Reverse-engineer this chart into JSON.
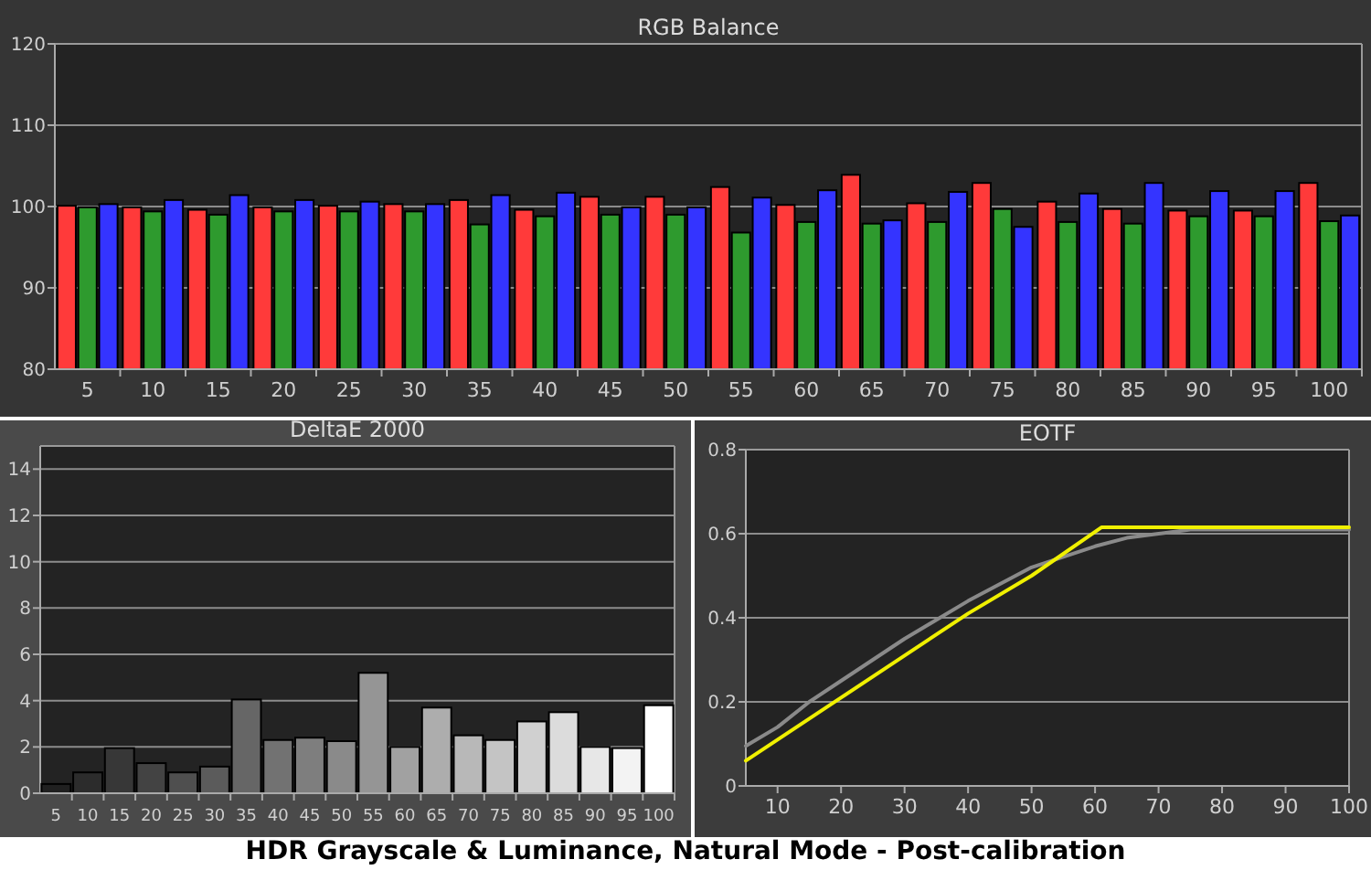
{
  "chart_data": [
    {
      "type": "bar",
      "title": "RGB Balance",
      "categories": [
        "5",
        "10",
        "15",
        "20",
        "25",
        "30",
        "35",
        "40",
        "45",
        "50",
        "55",
        "60",
        "65",
        "70",
        "75",
        "80",
        "85",
        "90",
        "95",
        "100"
      ],
      "series": [
        {
          "color": "#ff3a3a",
          "values": [
            100.1,
            99.9,
            99.6,
            99.9,
            100.1,
            100.3,
            100.8,
            99.6,
            101.2,
            101.2,
            102.4,
            100.2,
            103.9,
            100.4,
            102.9,
            100.6,
            99.7,
            99.5,
            99.5,
            102.9
          ]
        },
        {
          "color": "#2e9a2e",
          "values": [
            99.9,
            99.4,
            99.0,
            99.4,
            99.4,
            99.4,
            97.8,
            98.8,
            99.0,
            99.0,
            96.8,
            98.1,
            97.9,
            98.1,
            99.7,
            98.1,
            97.9,
            98.8,
            98.8,
            98.2
          ]
        },
        {
          "color": "#3434ff",
          "values": [
            100.3,
            100.8,
            101.4,
            100.8,
            100.6,
            100.3,
            101.4,
            101.7,
            99.9,
            99.9,
            101.1,
            102.0,
            98.3,
            101.8,
            97.5,
            101.6,
            102.9,
            101.9,
            101.9,
            98.9
          ]
        }
      ],
      "ylim": [
        80,
        120
      ],
      "yticks": [
        80,
        90,
        100,
        110,
        120
      ],
      "grid": "y",
      "annotations": [
        "HDR Grayscale & Luminance, Natural Mode - Post-calibration"
      ]
    },
    {
      "type": "bar",
      "title": "DeltaE 2000",
      "categories": [
        "5",
        "10",
        "15",
        "20",
        "25",
        "30",
        "35",
        "40",
        "45",
        "50",
        "55",
        "60",
        "65",
        "70",
        "75",
        "80",
        "85",
        "90",
        "95",
        "100"
      ],
      "values": [
        0.4,
        0.9,
        1.95,
        1.3,
        0.9,
        1.15,
        4.05,
        2.3,
        2.4,
        2.25,
        5.2,
        2.0,
        3.7,
        2.5,
        2.3,
        3.1,
        3.5,
        2.0,
        1.95,
        3.8
      ],
      "colors": [
        "#202020",
        "#2c2c2c",
        "#373737",
        "#434343",
        "#4f4f4f",
        "#5b5b5b",
        "#666666",
        "#727272",
        "#7e7e7e",
        "#8a8a8a",
        "#959595",
        "#a1a1a1",
        "#adadad",
        "#b8b8b8",
        "#c4c4c4",
        "#d0d0d0",
        "#dcdcdc",
        "#e7e7e7",
        "#f3f3f3",
        "#ffffff"
      ],
      "ylim": [
        0,
        15
      ],
      "yticks": [
        0,
        2,
        4,
        6,
        8,
        10,
        12,
        14
      ],
      "grid": "y"
    },
    {
      "type": "line",
      "title": "EOTF",
      "series": [
        {
          "color": "#8a8a8a",
          "x": [
            5,
            10,
            15,
            20,
            30,
            40,
            50,
            60,
            65,
            70,
            75,
            100
          ],
          "values": [
            0.095,
            0.14,
            0.2,
            0.25,
            0.35,
            0.44,
            0.52,
            0.57,
            0.59,
            0.6,
            0.61,
            0.61
          ]
        },
        {
          "color": "#f0f000",
          "x": [
            5,
            20,
            30,
            40,
            50,
            61,
            100
          ],
          "values": [
            0.06,
            0.21,
            0.31,
            0.41,
            0.5,
            0.615,
            0.615
          ]
        }
      ],
      "xlim": [
        5,
        100
      ],
      "xticks": [
        10,
        20,
        30,
        40,
        50,
        60,
        70,
        80,
        90,
        100
      ],
      "ylim": [
        0,
        0.8
      ],
      "yticks": [
        0,
        0.2,
        0.4,
        0.6,
        0.8
      ],
      "grid": "y"
    }
  ]
}
